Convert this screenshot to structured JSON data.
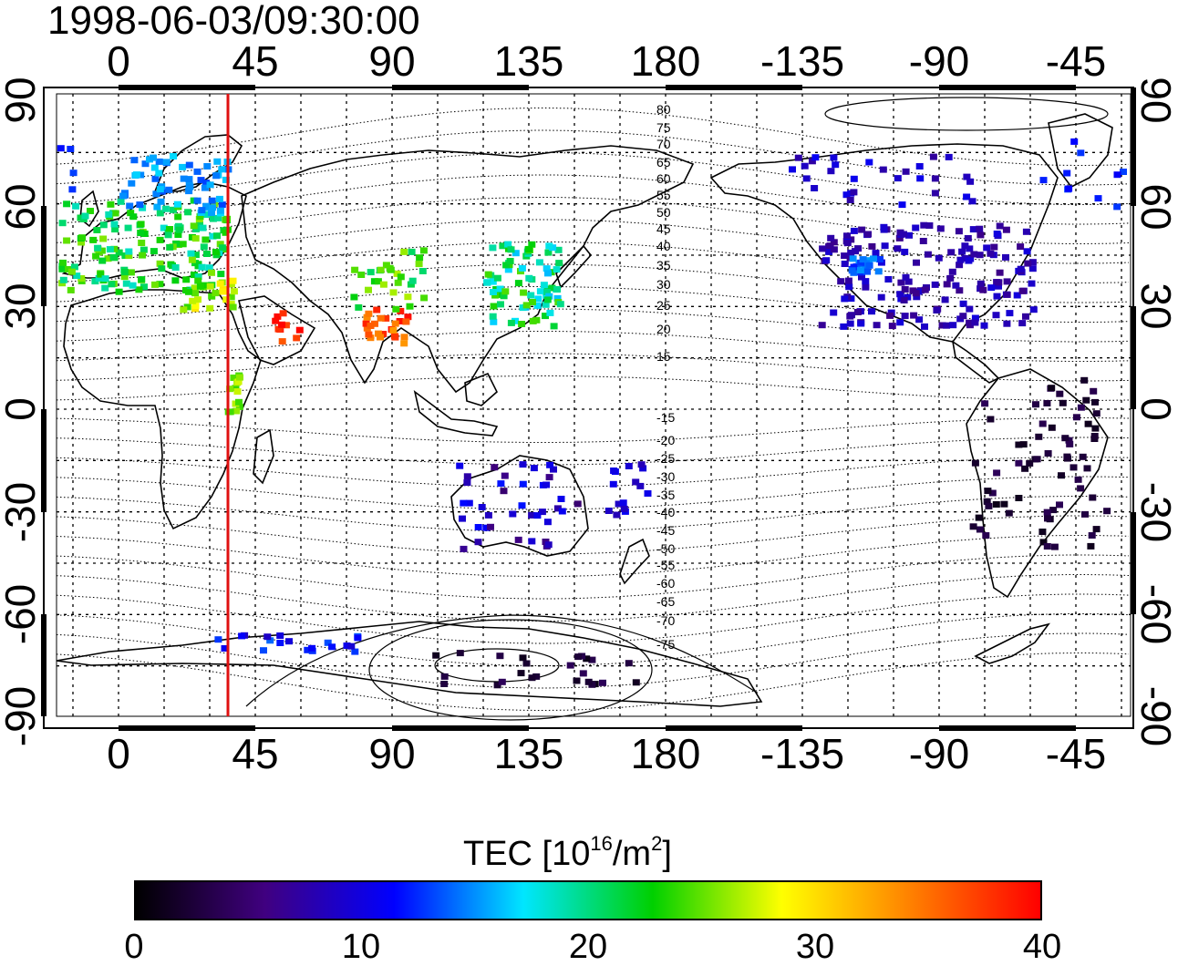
{
  "title": "1998-06-03/09:30:00",
  "colors": {
    "terminator": "#e01010",
    "frame": "#000000",
    "background": "#ffffff"
  },
  "lon_ticks": [
    "0",
    "45",
    "90",
    "135",
    "180",
    "-135",
    "-90",
    "-45"
  ],
  "lat_ticks": [
    "90",
    "60",
    "30",
    "0",
    "-30",
    "-60",
    "-90"
  ],
  "contour_labels": [
    "80",
    "75",
    "70",
    "65",
    "60",
    "55",
    "50",
    "45",
    "40",
    "35",
    "30",
    "25",
    "20",
    "15",
    "-15",
    "-20",
    "-25",
    "-30",
    "-35",
    "-40",
    "-45",
    "-50",
    "-55",
    "-60",
    "-65",
    "-70",
    "-75"
  ],
  "colorbar": {
    "title_main": "TEC  [10",
    "title_exp1": "16",
    "title_mid": "/m",
    "title_exp2": "2",
    "title_end": "]",
    "min": 0,
    "max": 40,
    "ticks": [
      "0",
      "10",
      "20",
      "30",
      "40"
    ],
    "stops": [
      "#000000",
      "#400080",
      "#0000ff",
      "#00e6ff",
      "#00d000",
      "#ffff00",
      "#ff8000",
      "#ff0000"
    ]
  },
  "terminator_lon": 36
}
